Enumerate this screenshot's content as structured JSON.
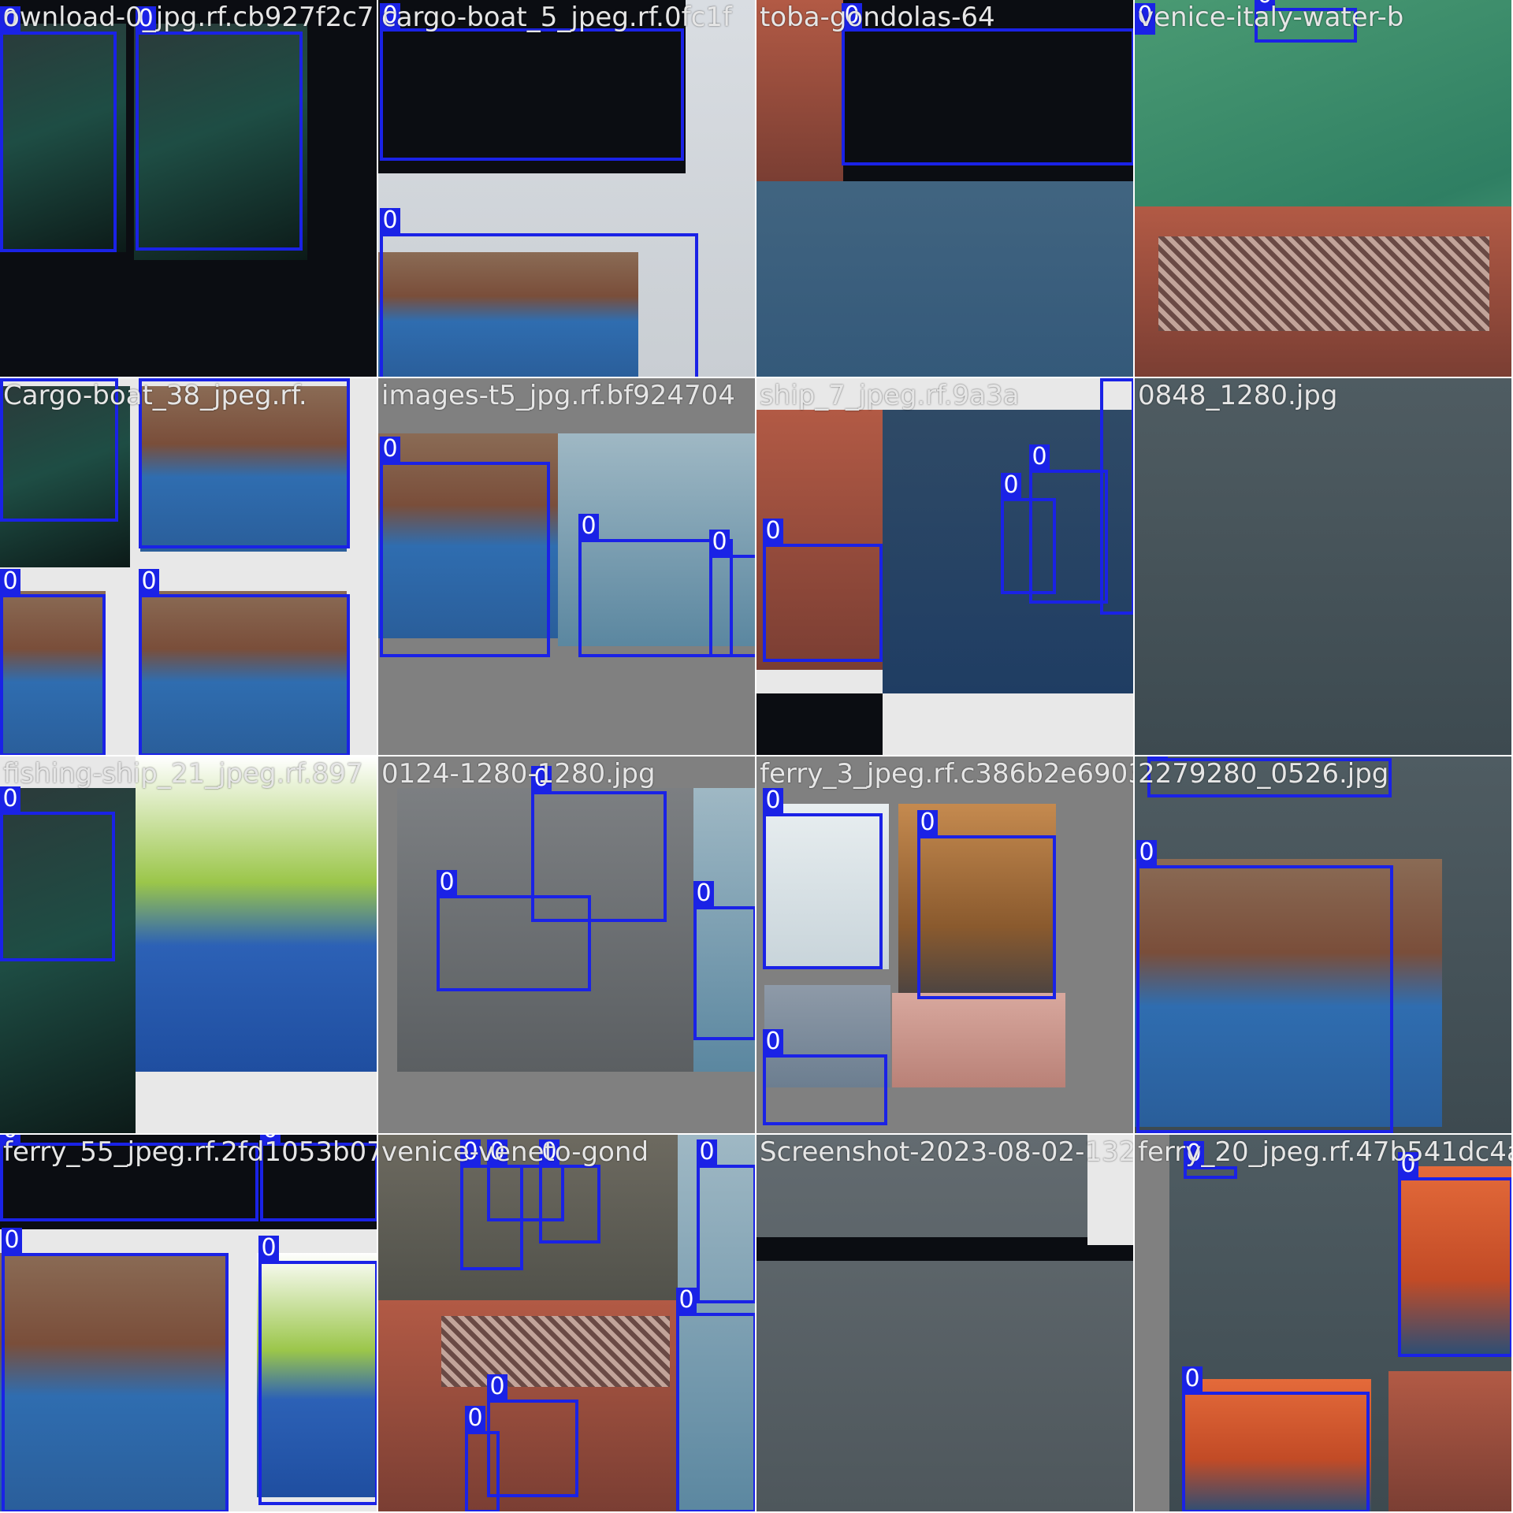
{
  "tile_labels": [
    "ownload-0_jpg.rf.cb927f2c7",
    "cargo-boat_5_jpeg.rf.0fc1f",
    "toba-gondolas-64",
    "venice-italy-water-b",
    "Cargo-boat_38_jpeg.rf.",
    "images-t5_jpg.rf.bf924704",
    "ship_7_jpeg.rf.9a3a",
    "0848_1280.jpg",
    "fishing-ship_21_jpeg.rf.897",
    "0124-1280-1280.jpg",
    "ferry_3_jpeg.rf.c386b2e6903",
    "2279280_0526.jpg",
    "ferry_55_jpeg.rf.2fd1053b07",
    "venice-veneto-gond",
    "Screenshot-2023-08-02-132",
    "ferry_20_jpeg.rf.47b541dc4a"
  ],
  "box_class_label": "0",
  "box_color": "#1a22e6",
  "label_color": "#e6e6e6"
}
